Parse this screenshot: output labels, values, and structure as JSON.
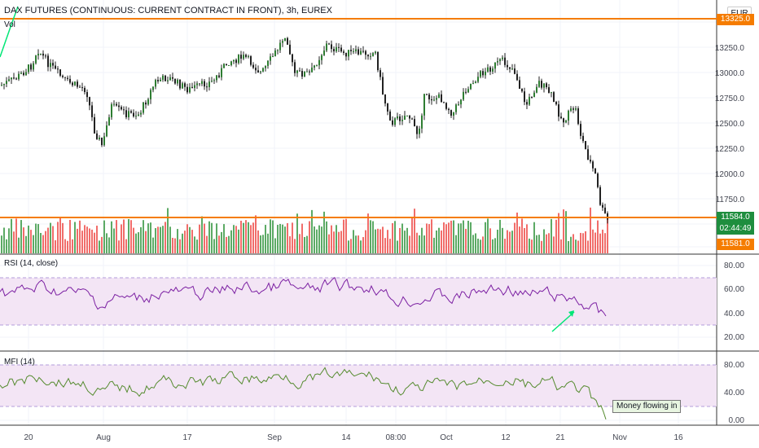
{
  "header": {
    "title": "DAX FUTURES (CONTINUOUS: CURRENT CONTRACT IN FRONT), 3h, EUREX",
    "volume_label": "Vol",
    "currency": "EUR"
  },
  "price_axis": {
    "labels": [
      "13250.0",
      "13000.0",
      "12750.0",
      "12500.0",
      "12250.0",
      "12000.0",
      "11750.0"
    ],
    "badges": {
      "top_level": "13325.0",
      "last_price": "11584.0",
      "countdown": "02:44:49",
      "low_level": "11581.0"
    }
  },
  "rsi": {
    "label": "RSI (14, close)",
    "axis": [
      "80.00",
      "60.00",
      "40.00",
      "20.00"
    ]
  },
  "mfi": {
    "label": "MFI (14)",
    "axis": [
      "80.00",
      "40.00",
      "0.00"
    ],
    "annotation": "Money flowing in"
  },
  "time_axis": [
    "20",
    "Aug",
    "17",
    "Sep",
    "14",
    "08:00",
    "Oct",
    "12",
    "21",
    "Nov",
    "16"
  ],
  "colors": {
    "up": "#26a69a",
    "down": "#ef5350",
    "volume_up": "#3f9b4a",
    "volume_down": "#ef5350",
    "level_line": "#f57c00",
    "rsi_line": "#7b1fa2",
    "mfi_line": "#558b2f",
    "band_fill": "#f3e5f5",
    "trend_green": "#00e676",
    "badge_dark": "#1e8e3e"
  }
}
